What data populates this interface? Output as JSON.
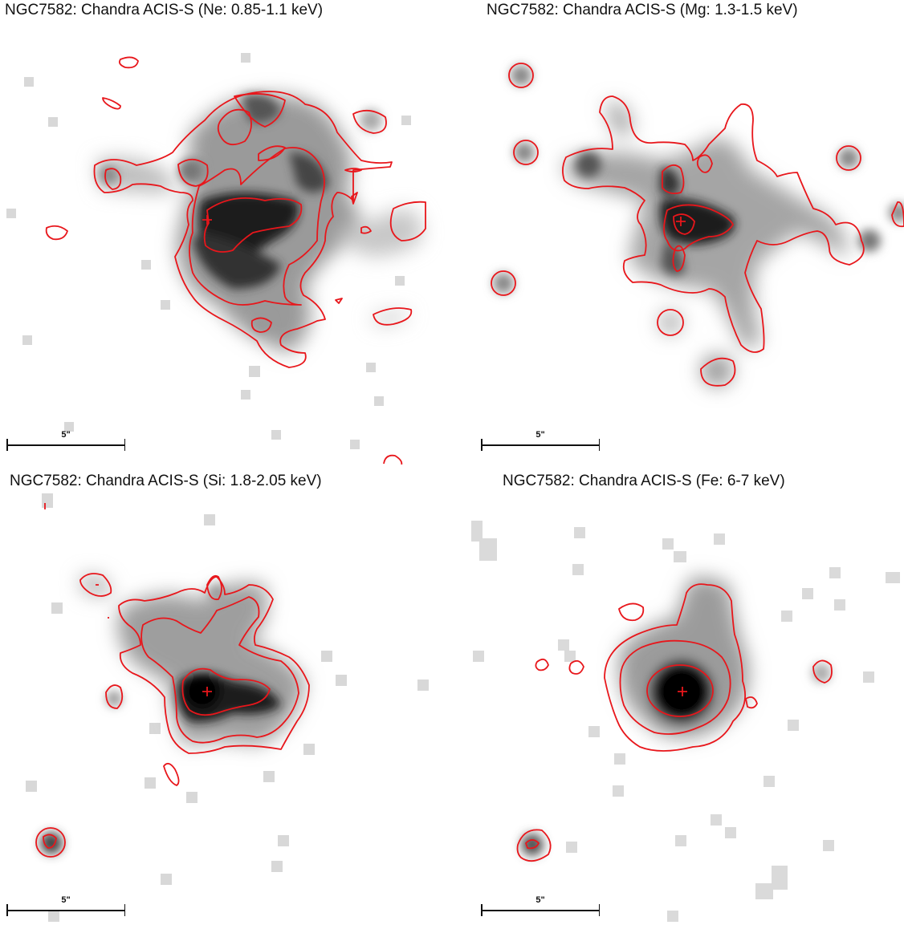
{
  "panels": [
    {
      "id": "ne",
      "title": "NGC7582: Chandra ACIS-S (Ne: 0.85-1.1 keV)",
      "scale_label": "5\""
    },
    {
      "id": "mg",
      "title": "NGC7582: Chandra ACIS-S (Mg: 1.3-1.5 keV)",
      "scale_label": "5\""
    },
    {
      "id": "si",
      "title": "NGC7582: Chandra ACIS-S (Si: 1.8-2.05 keV)",
      "scale_label": "5\""
    },
    {
      "id": "fe",
      "title": "NGC7582: Chandra ACIS-S (Fe: 6-7 keV)",
      "scale_label": "5\""
    }
  ],
  "colors": {
    "contour": "#e8161b",
    "background": "#ffffff",
    "emission_dark": "#0a0a0a"
  }
}
